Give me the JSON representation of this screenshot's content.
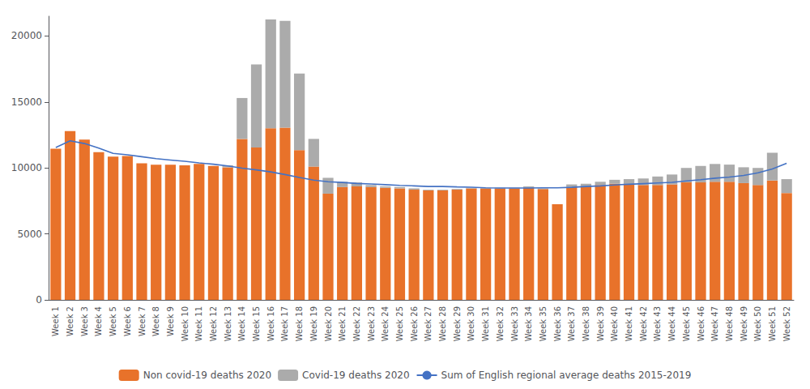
{
  "chart_data": {
    "type": "bar",
    "categories": [
      "Week 1",
      "Week 2",
      "Week 3",
      "Week 4",
      "Week 5",
      "Week 6",
      "Week 7",
      "Week 8",
      "Week 9",
      "Week 10",
      "Week 11",
      "Week 12",
      "Week 13",
      "Week 14",
      "Week 15",
      "Week 16",
      "Week 17",
      "Week 18",
      "Week 19",
      "Week 20",
      "Week 21",
      "Week 22",
      "Week 23",
      "Week 24",
      "Week 25",
      "Week 26",
      "Week 27",
      "Week 28",
      "Week 29",
      "Week 30",
      "Week 31",
      "Week 32",
      "Week 33",
      "Week 34",
      "Week 35",
      "Week 36",
      "Week 37",
      "Week 38",
      "Week 39",
      "Week 40",
      "Week 41",
      "Week 42",
      "Week 43",
      "Week 44",
      "Week 45",
      "Week 46",
      "Week 47",
      "Week 48",
      "Week 49",
      "Week 50",
      "Week 51",
      "Week 52"
    ],
    "series": [
      {
        "name": "Non covid-19 deaths 2020",
        "type": "bar",
        "color": "#E8722A",
        "values": [
          11450,
          12800,
          12150,
          11200,
          10850,
          10900,
          10350,
          10250,
          10250,
          10200,
          10300,
          10150,
          10050,
          12200,
          11550,
          13000,
          13050,
          11350,
          10100,
          8050,
          8550,
          8600,
          8550,
          8500,
          8450,
          8350,
          8300,
          8300,
          8350,
          8450,
          8450,
          8450,
          8450,
          8500,
          8400,
          7250,
          8550,
          8600,
          8700,
          8800,
          8750,
          8700,
          8700,
          8750,
          8900,
          8900,
          8950,
          8950,
          8850,
          8700,
          9050,
          8100
        ]
      },
      {
        "name": "Covid-19 deaths 2020",
        "type": "bar",
        "color": "#ABABAB",
        "values": [
          0,
          0,
          0,
          0,
          0,
          0,
          0,
          0,
          0,
          0,
          0,
          0,
          150,
          3100,
          6300,
          8250,
          8100,
          5800,
          2100,
          1200,
          400,
          300,
          150,
          100,
          100,
          100,
          50,
          50,
          50,
          50,
          50,
          50,
          50,
          100,
          50,
          0,
          200,
          200,
          250,
          300,
          400,
          500,
          650,
          750,
          1100,
          1250,
          1350,
          1300,
          1200,
          1300,
          2100,
          1050
        ]
      },
      {
        "name": "Sum of English regional average deaths 2015-2019",
        "type": "line",
        "color": "#4472C4",
        "values": [
          11550,
          12050,
          11850,
          11500,
          11100,
          11000,
          10850,
          10700,
          10600,
          10500,
          10380,
          10280,
          10150,
          9980,
          9850,
          9700,
          9500,
          9280,
          9080,
          8950,
          8900,
          8820,
          8780,
          8730,
          8680,
          8640,
          8590,
          8590,
          8560,
          8540,
          8490,
          8480,
          8480,
          8480,
          8490,
          8490,
          8530,
          8590,
          8640,
          8710,
          8760,
          8810,
          8860,
          8910,
          9010,
          9110,
          9220,
          9310,
          9430,
          9630,
          9920,
          10350
        ]
      }
    ],
    "stacked": true,
    "ylim": [
      0,
      21500
    ],
    "yticks": [
      0,
      5000,
      10000,
      15000,
      20000
    ],
    "grid": false,
    "legend": "bottom"
  }
}
